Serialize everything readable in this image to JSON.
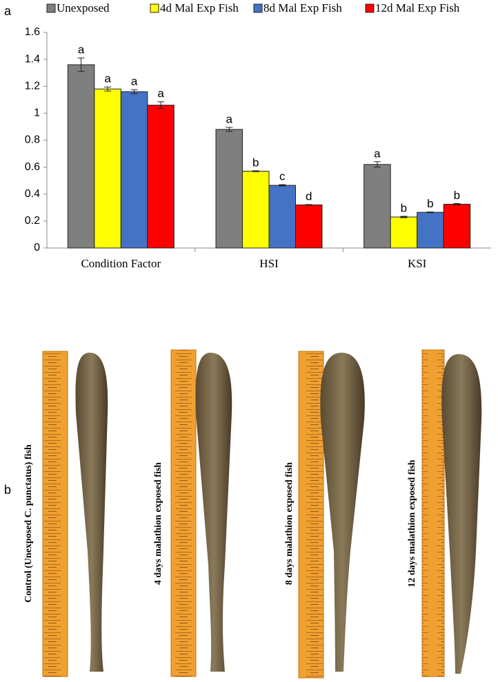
{
  "chart_data": {
    "type": "bar",
    "categories": [
      "Condition Factor",
      "HSI",
      "KSI"
    ],
    "series": [
      {
        "name": "Unexposed",
        "color": "#7f7f7f",
        "values": [
          1.36,
          0.88,
          0.62
        ],
        "errors": [
          0.05,
          0.015,
          0.02
        ],
        "letters": [
          "a",
          "a",
          "a"
        ]
      },
      {
        "name": "4d Mal Exp Fish",
        "color": "#ffff00",
        "values": [
          1.18,
          0.57,
          0.23
        ],
        "errors": [
          0.015,
          0.003,
          0.005
        ],
        "letters": [
          "a",
          "b",
          "b"
        ]
      },
      {
        "name": "8d Mal Exp Fish",
        "color": "#4472c4",
        "values": [
          1.16,
          0.465,
          0.265
        ],
        "errors": [
          0.015,
          0.005,
          0.003
        ],
        "letters": [
          "a",
          "c",
          "b"
        ]
      },
      {
        "name": "12d Mal Exp Fish",
        "color": "#ff0000",
        "values": [
          1.06,
          0.32,
          0.325
        ],
        "errors": [
          0.025,
          0.003,
          0.005
        ],
        "letters": [
          "a",
          "d",
          "b"
        ]
      }
    ],
    "ylim": [
      0,
      1.6
    ],
    "yticks": [
      0,
      0.2,
      0.4,
      0.6,
      0.8,
      1,
      1.2,
      1.4,
      1.6
    ],
    "grid": false
  },
  "panel_labels": [
    "a",
    "b"
  ],
  "photos": {
    "captions": [
      "Control (Unexposed C. punctatus) fish",
      "4 days malathion exposed fish",
      "8 days malathion exposed fish",
      "12 days malathion exposed fish"
    ]
  }
}
